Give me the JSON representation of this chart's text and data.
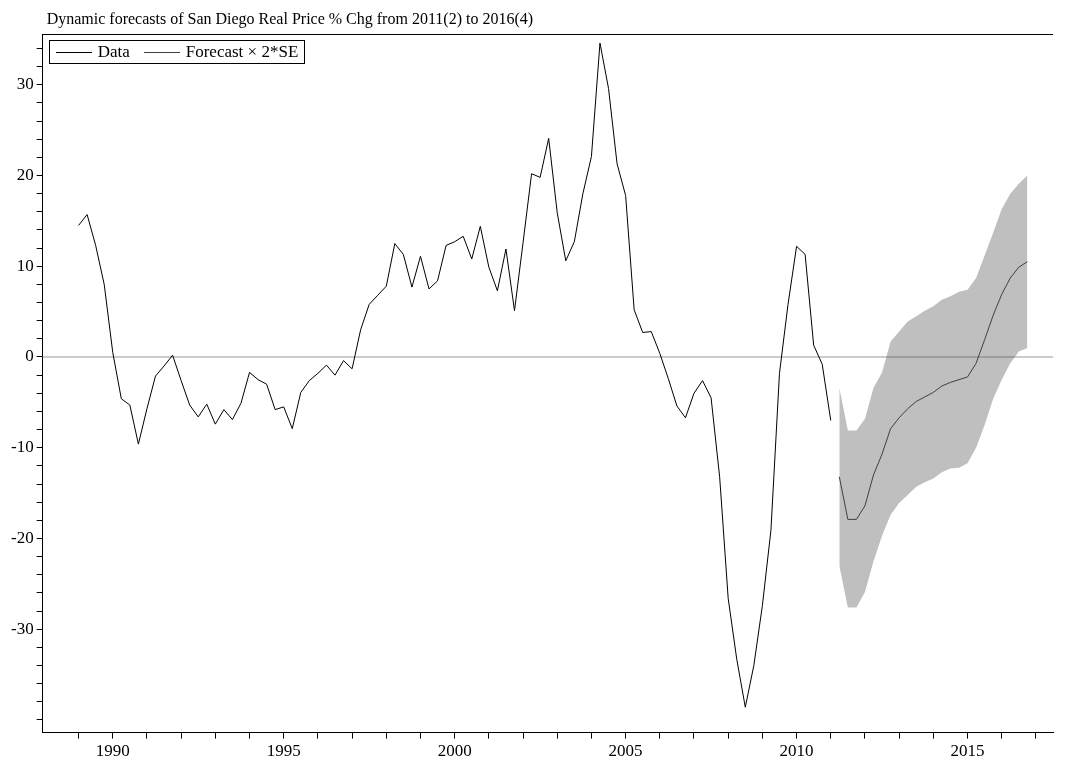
{
  "chart_data": {
    "type": "line",
    "title": "Dynamic forecasts of San Diego Real Price % Chg from 2011(2) to 2016(4)",
    "xlim": [
      1987.95,
      2017.5
    ],
    "ylim": [
      -41.4,
      35.6
    ],
    "xticks": [
      {
        "value": 1989,
        "label": null
      },
      1990,
      {
        "value": 1991,
        "label": null
      },
      {
        "value": 1992,
        "label": null
      },
      {
        "value": 1993,
        "label": null
      },
      {
        "value": 1994,
        "label": null
      },
      1995,
      {
        "value": 1996,
        "label": null
      },
      {
        "value": 1997,
        "label": null
      },
      {
        "value": 1998,
        "label": null
      },
      {
        "value": 1999,
        "label": null
      },
      2000,
      {
        "value": 2001,
        "label": null
      },
      {
        "value": 2002,
        "label": null
      },
      {
        "value": 2003,
        "label": null
      },
      {
        "value": 2004,
        "label": null
      },
      2005,
      {
        "value": 2006,
        "label": null
      },
      {
        "value": 2007,
        "label": null
      },
      {
        "value": 2008,
        "label": null
      },
      {
        "value": 2009,
        "label": null
      },
      2010,
      {
        "value": 2011,
        "label": null
      },
      {
        "value": 2012,
        "label": null
      },
      {
        "value": 2013,
        "label": null
      },
      {
        "value": 2014,
        "label": null
      },
      2015,
      {
        "value": 2016,
        "label": null
      },
      {
        "value": 2017,
        "label": null
      }
    ],
    "yticks": [
      {
        "value": -40,
        "label": null
      },
      {
        "value": -38,
        "label": null
      },
      {
        "value": -36,
        "label": null
      },
      {
        "value": -34,
        "label": null
      },
      {
        "value": -32,
        "label": null
      },
      -30,
      {
        "value": -28,
        "label": null
      },
      {
        "value": -26,
        "label": null
      },
      {
        "value": -24,
        "label": null
      },
      {
        "value": -22,
        "label": null
      },
      -20,
      {
        "value": -18,
        "label": null
      },
      {
        "value": -16,
        "label": null
      },
      {
        "value": -14,
        "label": null
      },
      {
        "value": -12,
        "label": null
      },
      -10,
      {
        "value": -8,
        "label": null
      },
      {
        "value": -6,
        "label": null
      },
      {
        "value": -4,
        "label": null
      },
      {
        "value": -2,
        "label": null
      },
      0,
      {
        "value": 2,
        "label": null
      },
      {
        "value": 4,
        "label": null
      },
      {
        "value": 6,
        "label": null
      },
      {
        "value": 8,
        "label": null
      },
      10,
      {
        "value": 12,
        "label": null
      },
      {
        "value": 14,
        "label": null
      },
      {
        "value": 16,
        "label": null
      },
      {
        "value": 18,
        "label": null
      },
      20,
      {
        "value": 22,
        "label": null
      },
      {
        "value": 24,
        "label": null
      },
      {
        "value": 26,
        "label": null
      },
      {
        "value": 28,
        "label": null
      },
      30,
      {
        "value": 32,
        "label": null
      },
      {
        "value": 34,
        "label": null
      }
    ],
    "grid": false,
    "legend": "top left",
    "marker": "none",
    "line_style": "solid",
    "ref_lines": [
      {
        "axis": "y",
        "value": 0,
        "color": "#999999"
      }
    ],
    "series": [
      {
        "name": "Data",
        "color": "#000000",
        "x": [
          1989,
          1989.25,
          1989.5,
          1989.75,
          1990,
          1990.25,
          1990.5,
          1990.75,
          1991,
          1991.25,
          1991.5,
          1991.75,
          1992,
          1992.25,
          1992.5,
          1992.75,
          1993,
          1993.25,
          1993.5,
          1993.75,
          1994,
          1994.25,
          1994.5,
          1994.75,
          1995,
          1995.25,
          1995.5,
          1995.75,
          1996,
          1996.25,
          1996.5,
          1996.75,
          1997,
          1997.25,
          1997.5,
          1997.75,
          1998,
          1998.25,
          1998.5,
          1998.75,
          1999,
          1999.25,
          1999.5,
          1999.75,
          2000,
          2000.25,
          2000.5,
          2000.75,
          2001,
          2001.25,
          2001.5,
          2001.75,
          2002,
          2002.25,
          2002.5,
          2002.75,
          2003,
          2003.25,
          2003.5,
          2003.75,
          2004,
          2004.25,
          2004.5,
          2004.75,
          2005,
          2005.25,
          2005.5,
          2005.75,
          2006,
          2006.25,
          2006.5,
          2006.75,
          2007,
          2007.25,
          2007.5,
          2007.75,
          2008,
          2008.25,
          2008.5,
          2008.75,
          2009,
          2009.25,
          2009.5,
          2009.75,
          2010,
          2010.25,
          2010.5,
          2010.75,
          2011
        ],
        "values": [
          14.5,
          15.7,
          12.3,
          8.0,
          0.5,
          -4.6,
          -5.3,
          -9.6,
          -5.7,
          -2.1,
          -1.0,
          0.2,
          -2.6,
          -5.3,
          -6.6,
          -5.2,
          -7.4,
          -5.8,
          -6.9,
          -5.1,
          -1.7,
          -2.5,
          -3.0,
          -5.8,
          -5.5,
          -7.9,
          -3.9,
          -2.6,
          -1.8,
          -0.9,
          -2.0,
          -0.4,
          -1.3,
          3.0,
          5.8,
          6.8,
          7.8,
          12.5,
          11.3,
          7.7,
          11.1,
          7.5,
          8.4,
          12.3,
          12.7,
          13.3,
          10.8,
          14.4,
          9.9,
          7.3,
          11.9,
          5.1,
          12.6,
          20.2,
          19.8,
          24.1,
          15.9,
          10.6,
          12.7,
          18.0,
          22.1,
          34.6,
          29.6,
          21.3,
          17.8,
          5.2,
          2.7,
          2.8,
          0.4,
          -2.4,
          -5.4,
          -6.7,
          -4.0,
          -2.6,
          -4.5,
          -13.2,
          -26.6,
          -33.3,
          -38.6,
          -34.0,
          -27.4,
          -19.1,
          -1.8,
          5.8,
          12.2,
          11.3,
          1.3,
          -0.8,
          -7.0
        ]
      },
      {
        "name": "Forecast × 2*SE",
        "color": "#404040",
        "x": [
          2011.25,
          2011.5,
          2011.75,
          2012,
          2012.25,
          2012.5,
          2012.75,
          2013,
          2013.25,
          2013.5,
          2013.75,
          2014,
          2014.25,
          2014.5,
          2014.75,
          2015,
          2015.25,
          2015.5,
          2015.75,
          2016,
          2016.25,
          2016.5,
          2016.75
        ],
        "values": [
          -13.2,
          -17.9,
          -17.9,
          -16.4,
          -13.0,
          -10.7,
          -7.9,
          -6.7,
          -5.7,
          -4.9,
          -4.4,
          -3.9,
          -3.2,
          -2.8,
          -2.5,
          -2.2,
          -0.7,
          1.9,
          4.6,
          6.9,
          8.7,
          9.9,
          10.5
        ],
        "lower": [
          -23.0,
          -27.6,
          -27.6,
          -25.9,
          -22.5,
          -19.7,
          -17.4,
          -16.1,
          -15.2,
          -14.3,
          -13.8,
          -13.4,
          -12.7,
          -12.3,
          -12.2,
          -11.7,
          -10.0,
          -7.5,
          -4.6,
          -2.5,
          -0.7,
          0.6,
          1.0
        ],
        "upper": [
          -3.4,
          -8.1,
          -8.1,
          -6.8,
          -3.4,
          -1.7,
          1.7,
          2.8,
          3.9,
          4.5,
          5.1,
          5.6,
          6.3,
          6.7,
          7.2,
          7.4,
          8.7,
          11.2,
          13.7,
          16.3,
          18.0,
          19.1,
          20.0
        ]
      }
    ]
  }
}
